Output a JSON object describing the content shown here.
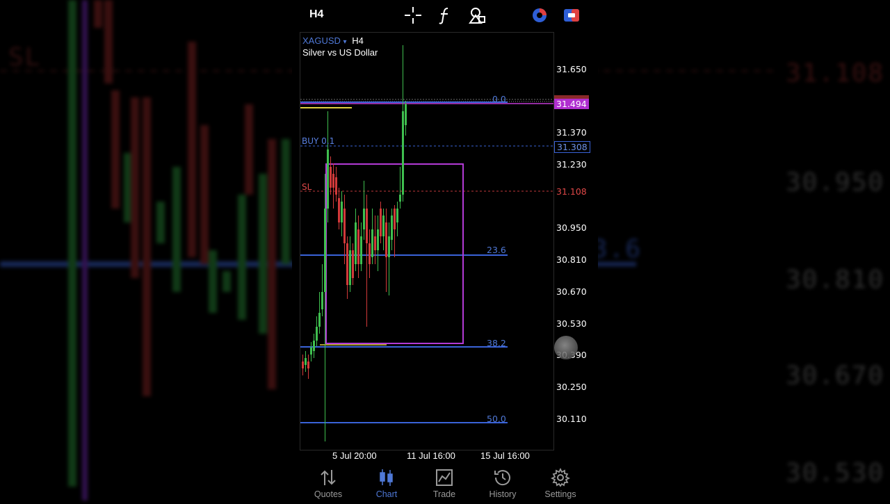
{
  "topbar": {
    "timeframe": "H4",
    "icons": [
      "crosshair-icon",
      "function-icon",
      "objects-icon",
      "one-click-trade-icon",
      "account-icon"
    ]
  },
  "chart": {
    "symbol": "XAGUSD",
    "symbol_caret": "▾",
    "timeframe": "H4",
    "description": "Silver vs US Dollar",
    "price_axis": [
      "31.650",
      "31.370",
      "31.230",
      "30.950",
      "30.810",
      "30.670",
      "30.530",
      "30.390",
      "30.250",
      "30.110"
    ],
    "current_price": "31.494",
    "buy_price": "31.308",
    "sl_price": "31.108",
    "buy_label": "BUY 0.1",
    "sl_label": "SL",
    "fib_levels": [
      "0.0",
      "23.6",
      "38.2",
      "50.0"
    ],
    "time_axis": [
      "5 Jul 20:00",
      "11 Jul 16:00",
      "15 Jul 16:00"
    ],
    "colors": {
      "bull": "#3fbf4f",
      "bear": "#d23a3a",
      "fib": "#3a63d8",
      "rect": "#b33ad6",
      "current": "#c23ad6",
      "sl": "#c0393b"
    }
  },
  "background": {
    "left_label": "SL",
    "right_labels": [
      "31.108",
      "30.950",
      "30.810",
      "30.670",
      "30.530"
    ],
    "fib_label": "3.6"
  },
  "navbar": {
    "items": [
      {
        "label": "Quotes",
        "icon": "quotes-icon"
      },
      {
        "label": "Chart",
        "icon": "chart-icon"
      },
      {
        "label": "Trade",
        "icon": "trade-icon"
      },
      {
        "label": "History",
        "icon": "history-icon"
      },
      {
        "label": "Settings",
        "icon": "settings-icon"
      }
    ],
    "active": "Chart"
  }
}
